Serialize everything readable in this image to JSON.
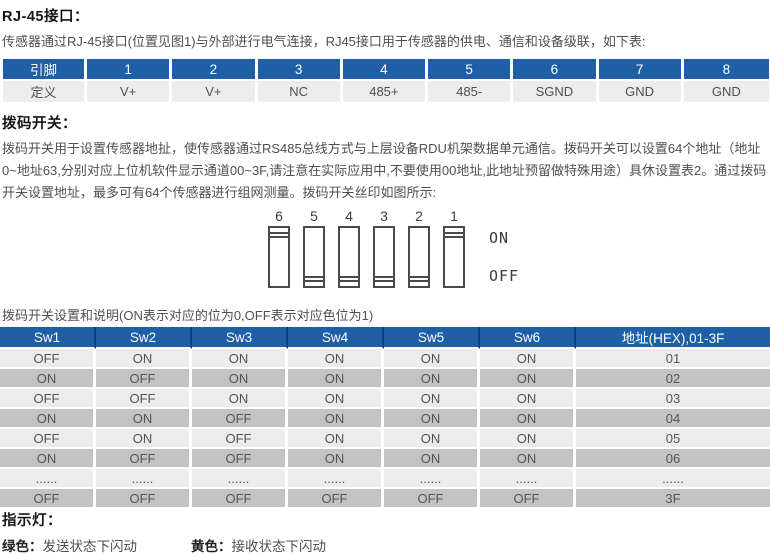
{
  "section1": {
    "heading": "RJ-45接口：",
    "paragraph": "传感器通过RJ-45接口(位置见图1)与外部进行电气连接，RJ45接口用于传感器的供电、通信和设备级联，如下表:"
  },
  "pin_table": {
    "headers": [
      "引脚",
      "1",
      "2",
      "3",
      "4",
      "5",
      "6",
      "7",
      "8"
    ],
    "rows": [
      [
        "定义",
        "V+",
        "V+",
        "NC",
        "485+",
        "485-",
        "SGND",
        "GND",
        "GND"
      ]
    ]
  },
  "section2": {
    "heading": "拨码开关：",
    "paragraph": "拨码开关用于设置传感器地扯，使传感器通过RS485总线方式与上层设备RDU机架数据单元通信。拨码开关可以设置64个地址（地址0~地址63,分别对应上位机软件显示通道00~3F,请注意在实际应用中,不要使用00地址,此地址预留做特殊用途）具休设置表2。通过拨码开关设置地址，最多可有64个传感器进行组网测量。拨码开关丝印如图所示:"
  },
  "dip_diagram": {
    "switches": [
      {
        "number": "6",
        "state": "on"
      },
      {
        "number": "5",
        "state": "off"
      },
      {
        "number": "4",
        "state": "off"
      },
      {
        "number": "3",
        "state": "off"
      },
      {
        "number": "2",
        "state": "off"
      },
      {
        "number": "1",
        "state": "on"
      }
    ],
    "on_label": "ON",
    "off_label": "OFF"
  },
  "table2_caption": "拨码开关设置和说明(ON表示对应的位为0,OFF表示对应色位为1)",
  "switch_table": {
    "headers": [
      "Sw1",
      "Sw2",
      "Sw3",
      "Sw4",
      "Sw5",
      "Sw6",
      "地址(HEX),01-3F"
    ],
    "rows": [
      [
        "OFF",
        "ON",
        "ON",
        "ON",
        "ON",
        "ON",
        "01"
      ],
      [
        "ON",
        "OFF",
        "ON",
        "ON",
        "ON",
        "ON",
        "02"
      ],
      [
        "OFF",
        "OFF",
        "ON",
        "ON",
        "ON",
        "ON",
        "03"
      ],
      [
        "ON",
        "ON",
        "OFF",
        "ON",
        "ON",
        "ON",
        "04"
      ],
      [
        "OFF",
        "ON",
        "OFF",
        "ON",
        "ON",
        "ON",
        "05"
      ],
      [
        "ON",
        "OFF",
        "OFF",
        "ON",
        "ON",
        "ON",
        "06"
      ],
      [
        "......",
        "......",
        "......",
        "......",
        "......",
        "......",
        "......"
      ],
      [
        "OFF",
        "OFF",
        "OFF",
        "OFF",
        "OFF",
        "OFF",
        "3F"
      ]
    ]
  },
  "section3": {
    "heading": "指示灯：",
    "green_label": "绿色：",
    "green_text": "发送状态下闪动",
    "yellow_label": "黄色：",
    "yellow_text": "接收状态下闪动"
  },
  "colors": {
    "header_blue": "#1e5fa8",
    "row_light": "#ececec",
    "row_dark": "#c3c3c3"
  }
}
